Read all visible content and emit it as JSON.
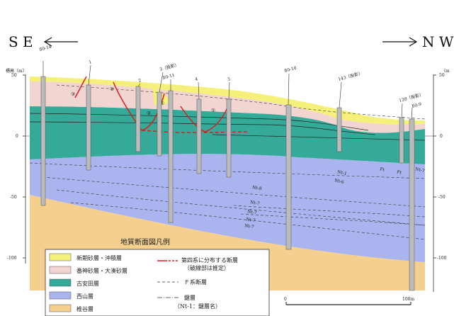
{
  "header": {
    "left_dir": "S E",
    "right_dir": "N W",
    "left_axis_label": "標高（m）",
    "right_axis_label": "（m",
    "axis_ticks": [
      "50",
      "0",
      "-50",
      "-100"
    ]
  },
  "boreholes": [
    {
      "label": "Ⅱ0-14"
    },
    {
      "label": "1"
    },
    {
      "label": "2"
    },
    {
      "label": "3（投影）"
    },
    {
      "label": "Ⅱ0-11"
    },
    {
      "label": "4"
    },
    {
      "label": "5"
    },
    {
      "label": "Ⅱ0-10"
    },
    {
      "label": "143（投影）"
    },
    {
      "label": "128（投影）"
    },
    {
      "label": "Ⅱ0-9"
    }
  ],
  "fault_labels": [
    "③",
    "②",
    "②",
    "①",
    "①"
  ],
  "key_bed_labels": [
    "Nt-1",
    "Nt-6",
    "Nt-8",
    "Nt-7",
    "Nt-7",
    "Nt-7",
    "Nt-7",
    "Nt-7",
    "Ft",
    "Ft"
  ],
  "legend": {
    "title": "地質断面図凡例",
    "units": [
      {
        "label": "新期砂層・沖積層",
        "color": "#f5f07a"
      },
      {
        "label": "番神砂層・大湊砂層",
        "color": "#f2d4d0"
      },
      {
        "label": "古安田層",
        "color": "#36aa98"
      },
      {
        "label": "西山層",
        "color": "#aab4ee"
      },
      {
        "label": "椎谷層",
        "color": "#f4cf8e"
      }
    ],
    "symbols": [
      {
        "label": "第四系に分布する断層",
        "sub": "（破線部は推定）",
        "icon": "red-fault-line"
      },
      {
        "label": "Ｆ系断層",
        "icon": "dashed-line"
      },
      {
        "label": "鍵層",
        "sub": "（Nt-1：鍵層名）",
        "icon": "dash-dot-line"
      }
    ]
  },
  "scale_bar": {
    "start": "0",
    "end": "100m"
  }
}
